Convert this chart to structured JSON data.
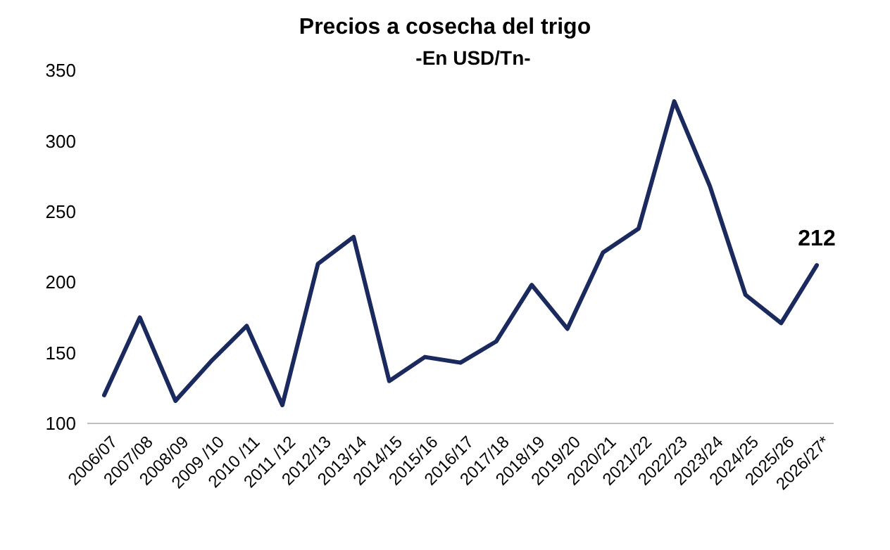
{
  "chart_data": {
    "type": "line",
    "title": "Precios a cosecha del trigo",
    "subtitle": "-En USD/Tn-",
    "categories": [
      "2006/07",
      "2007/08",
      "2008/09",
      "2009 /10",
      "2010 /11",
      "2011 /12",
      "2012/13",
      "2013/14",
      "2014/15",
      "2015/16",
      "2016/17",
      "2017/18",
      "2018/19",
      "2019/20",
      "2020/21",
      "2021/22",
      "2022/23",
      "2023/24",
      "2024/25",
      "2025/26",
      "2026/27*"
    ],
    "series": [
      {
        "color": "#1b2a5e",
        "values": [
          120,
          175,
          116,
          144,
          169,
          113,
          213,
          232,
          130,
          147,
          143,
          158,
          198,
          167,
          221,
          238,
          328,
          268,
          191,
          171,
          212
        ],
        "value_labels": [
          null,
          null,
          null,
          null,
          null,
          null,
          null,
          null,
          null,
          null,
          null,
          null,
          null,
          null,
          null,
          null,
          null,
          null,
          null,
          null,
          "212"
        ]
      }
    ],
    "ylim": [
      100,
      350
    ],
    "yticks": [
      100,
      150,
      200,
      250,
      300,
      350
    ],
    "marker": "none",
    "line_style": "solid"
  }
}
